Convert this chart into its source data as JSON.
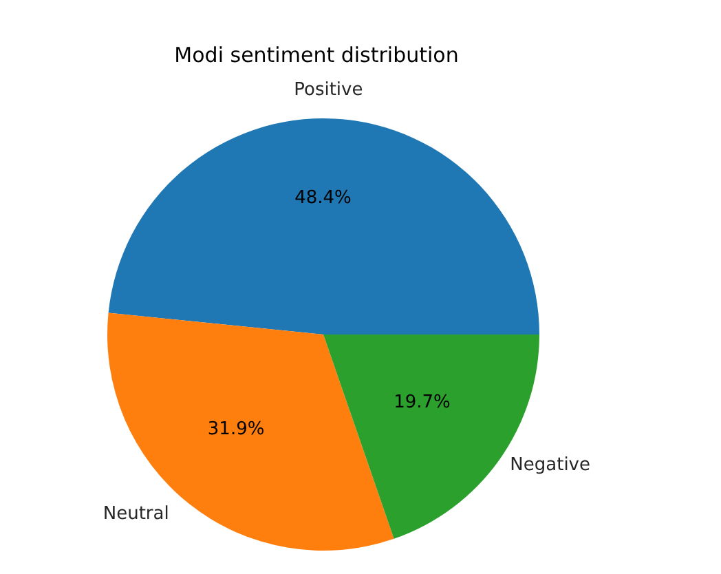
{
  "chart_data": {
    "type": "pie",
    "title": "Modi sentiment distribution",
    "categories": [
      "Positive",
      "Neutral",
      "Negative"
    ],
    "values": [
      48.4,
      31.9,
      19.7
    ],
    "value_labels": [
      "48.4%",
      "31.9%",
      "19.7%"
    ],
    "colors": [
      "#1f77b4",
      "#ff7f0e",
      "#2ca02c"
    ]
  }
}
